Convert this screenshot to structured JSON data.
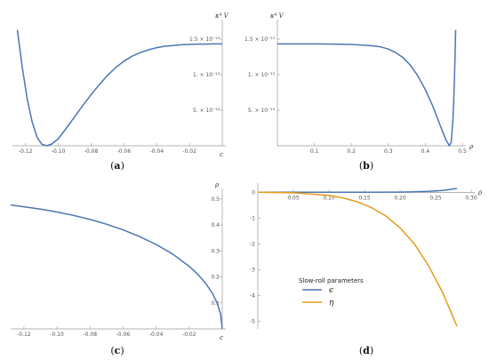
{
  "colors": {
    "blue": "#4a77b4",
    "orange": "#e69b1b",
    "axis": "#9a9a9a"
  },
  "chart_data": [
    {
      "panel": "a",
      "type": "line",
      "caption": "a",
      "xlabel": "c",
      "ylabel": "κ⁴ V",
      "xlim": [
        -0.128,
        0.0
      ],
      "ylim": [
        0,
        1.7e-13
      ],
      "xticks": [
        -0.12,
        -0.1,
        -0.08,
        -0.06,
        -0.04,
        -0.02
      ],
      "xtick_labels": [
        "-0.12",
        "-0.10",
        "-0.08",
        "-0.06",
        "-0.04",
        "-0.02"
      ],
      "yticks": [
        5e-14,
        1e-13,
        1.5e-13
      ],
      "ytick_labels": [
        "5. × 10⁻¹⁴",
        "1. × 10⁻¹³",
        "1.5 × 10⁻¹³"
      ],
      "series": [
        {
          "color": "#4a77b4",
          "x": [
            -0.125,
            -0.122,
            -0.119,
            -0.116,
            -0.113,
            -0.11,
            -0.107,
            -0.104,
            -0.1,
            -0.095,
            -0.09,
            -0.085,
            -0.08,
            -0.075,
            -0.07,
            -0.065,
            -0.06,
            -0.055,
            -0.05,
            -0.045,
            -0.04,
            -0.035,
            -0.03,
            -0.025,
            -0.02,
            -0.015,
            -0.01,
            -0.005,
            0.0
          ],
          "y": [
            1.63e-13,
            1.1e-13,
            6.6e-14,
            3.4e-14,
            1.2e-14,
            2e-15,
            0.0,
            2.5e-15,
            1e-14,
            2.5e-14,
            4.1e-14,
            5.7e-14,
            7.2e-14,
            8.6e-14,
            9.9e-14,
            1.1e-13,
            1.19e-13,
            1.26e-13,
            1.31e-13,
            1.35e-13,
            1.38e-13,
            1.4e-13,
            1.41e-13,
            1.42e-13,
            1.425e-13,
            1.43e-13,
            1.43e-13,
            1.432e-13,
            1.433e-13
          ]
        }
      ]
    },
    {
      "panel": "b",
      "type": "line",
      "caption": "b",
      "xlabel": "ρ",
      "ylabel": "κ⁴ V",
      "xlim": [
        0.0,
        0.5
      ],
      "ylim": [
        0,
        1.7e-13
      ],
      "xticks": [
        0.1,
        0.2,
        0.3,
        0.4,
        0.5
      ],
      "xtick_labels": [
        "0.1",
        "0.2",
        "0.3",
        "0.4",
        "0.5"
      ],
      "yticks": [
        5e-14,
        1e-13,
        1.5e-13
      ],
      "ytick_labels": [
        "5. × 10⁻¹⁴",
        "1. × 10⁻¹³",
        "1.5 × 10⁻¹³"
      ],
      "series": [
        {
          "color": "#4a77b4",
          "x": [
            0.0,
            0.05,
            0.1,
            0.15,
            0.2,
            0.25,
            0.28,
            0.3,
            0.32,
            0.34,
            0.36,
            0.38,
            0.4,
            0.42,
            0.44,
            0.455,
            0.465,
            0.47,
            0.475,
            0.478,
            0.48,
            0.482
          ],
          "y": [
            1.433e-13,
            1.433e-13,
            1.432e-13,
            1.43e-13,
            1.425e-13,
            1.41e-13,
            1.39e-13,
            1.36e-13,
            1.31e-13,
            1.24e-13,
            1.13e-13,
            9.8e-14,
            7.9e-14,
            5.6e-14,
            2.9e-14,
            9e-15,
            0.0,
            5e-15,
            4e-14,
            8e-14,
            1.2e-13,
            1.63e-13
          ]
        }
      ]
    },
    {
      "panel": "c",
      "type": "line",
      "caption": "c",
      "xlabel": "c",
      "ylabel": "ρ",
      "xlim": [
        -0.128,
        0.0
      ],
      "ylim": [
        0.0,
        0.52
      ],
      "xticks": [
        -0.12,
        -0.1,
        -0.08,
        -0.06,
        -0.04,
        -0.02
      ],
      "xtick_labels": [
        "-0.12",
        "-0.10",
        "-0.08",
        "-0.06",
        "-0.04",
        "-0.02"
      ],
      "yticks": [
        0.1,
        0.2,
        0.3,
        0.4,
        0.5
      ],
      "ytick_labels": [
        "0.1",
        "0.2",
        "0.3",
        "0.4",
        "0.5"
      ],
      "series": [
        {
          "color": "#4a77b4",
          "x": [
            -0.128,
            -0.12,
            -0.11,
            -0.1,
            -0.09,
            -0.08,
            -0.07,
            -0.06,
            -0.05,
            -0.04,
            -0.03,
            -0.02,
            -0.015,
            -0.01,
            -0.006,
            -0.003,
            -0.001,
            0.0
          ],
          "y": [
            0.477,
            0.47,
            0.461,
            0.45,
            0.437,
            0.421,
            0.403,
            0.381,
            0.355,
            0.325,
            0.288,
            0.241,
            0.211,
            0.175,
            0.138,
            0.098,
            0.057,
            0.0
          ]
        }
      ]
    },
    {
      "panel": "d",
      "type": "line",
      "caption": "d",
      "xlabel": "ρ",
      "xlim": [
        0.0,
        0.3
      ],
      "ylim": [
        -5.3,
        0.15
      ],
      "xticks": [
        0.05,
        0.1,
        0.15,
        0.2,
        0.25,
        0.3
      ],
      "xtick_labels": [
        "0.05",
        "0.10",
        "0.15",
        "0.20",
        "0.25",
        "0.30"
      ],
      "yticks": [
        -5,
        -4,
        -3,
        -2,
        -1,
        0
      ],
      "ytick_labels": [
        "-5",
        "-4",
        "-3",
        "-2",
        "-1",
        "0"
      ],
      "legend": {
        "title": "Slow-roll parameters",
        "position": "center-left"
      },
      "series": [
        {
          "name": "ϵ",
          "color": "#4a77b4",
          "x": [
            0.0,
            0.05,
            0.1,
            0.15,
            0.2,
            0.22,
            0.24,
            0.26,
            0.28
          ],
          "y": [
            0.0,
            0.0,
            0.0,
            0.002,
            0.01,
            0.018,
            0.035,
            0.07,
            0.15
          ]
        },
        {
          "name": "η",
          "color": "#e69b1b",
          "x": [
            0.0,
            0.05,
            0.1,
            0.12,
            0.14,
            0.16,
            0.18,
            0.2,
            0.22,
            0.24,
            0.26,
            0.28
          ],
          "y": [
            0.0,
            -0.02,
            -0.12,
            -0.22,
            -0.37,
            -0.6,
            -0.92,
            -1.38,
            -2.0,
            -2.85,
            -3.9,
            -5.2
          ]
        }
      ]
    }
  ]
}
